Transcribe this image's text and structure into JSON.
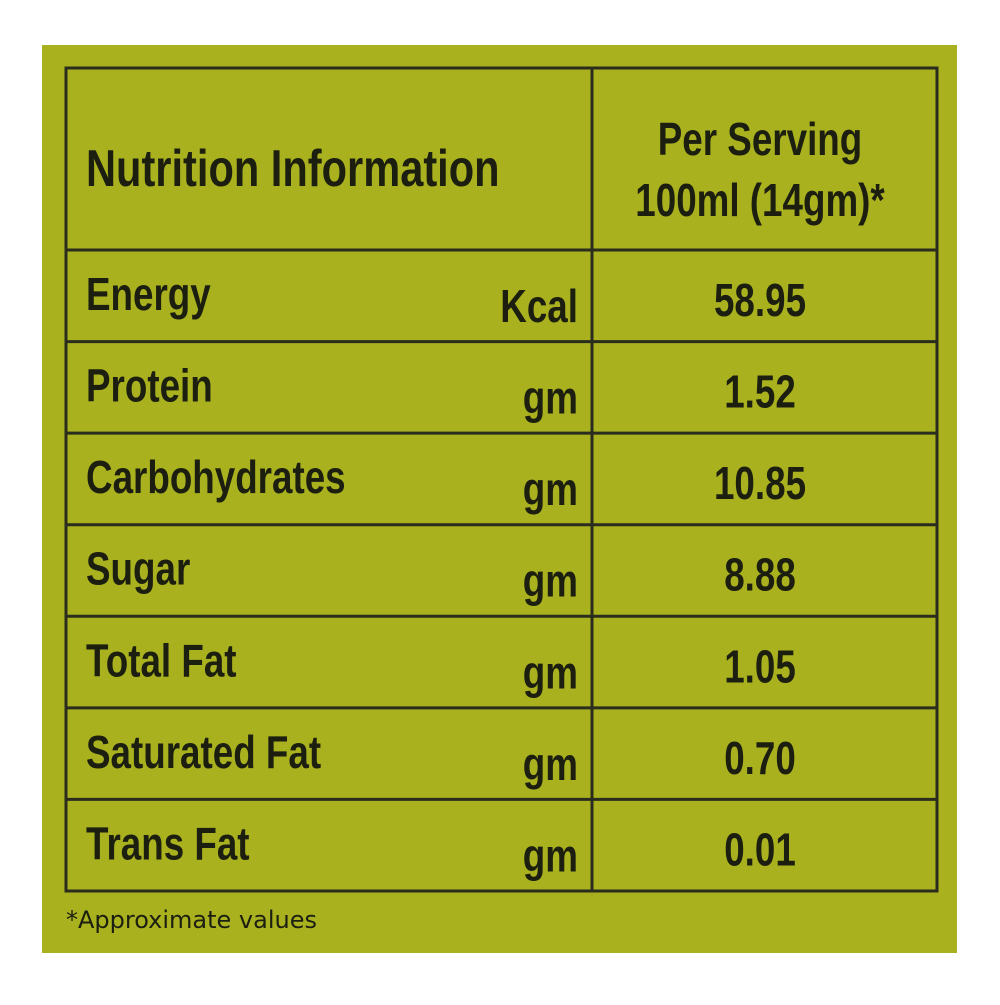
{
  "table": {
    "header": {
      "title": "Nutrition Information",
      "serving": [
        "Per Serving",
        "100ml (14gm)*"
      ]
    },
    "rows": [
      [
        "Energy",
        "Kcal",
        "58.95"
      ],
      [
        "Protein",
        "gm",
        "1.52"
      ],
      [
        "Carbohydrates",
        "gm",
        "10.85"
      ],
      [
        "Sugar",
        "gm",
        "8.88"
      ],
      [
        "Total Fat",
        "gm",
        "1.05"
      ],
      [
        "Saturated Fat",
        "gm",
        "0.70"
      ],
      [
        "Trans Fat",
        "gm",
        "0.01"
      ]
    ]
  },
  "footnote": "*Approximate values"
}
